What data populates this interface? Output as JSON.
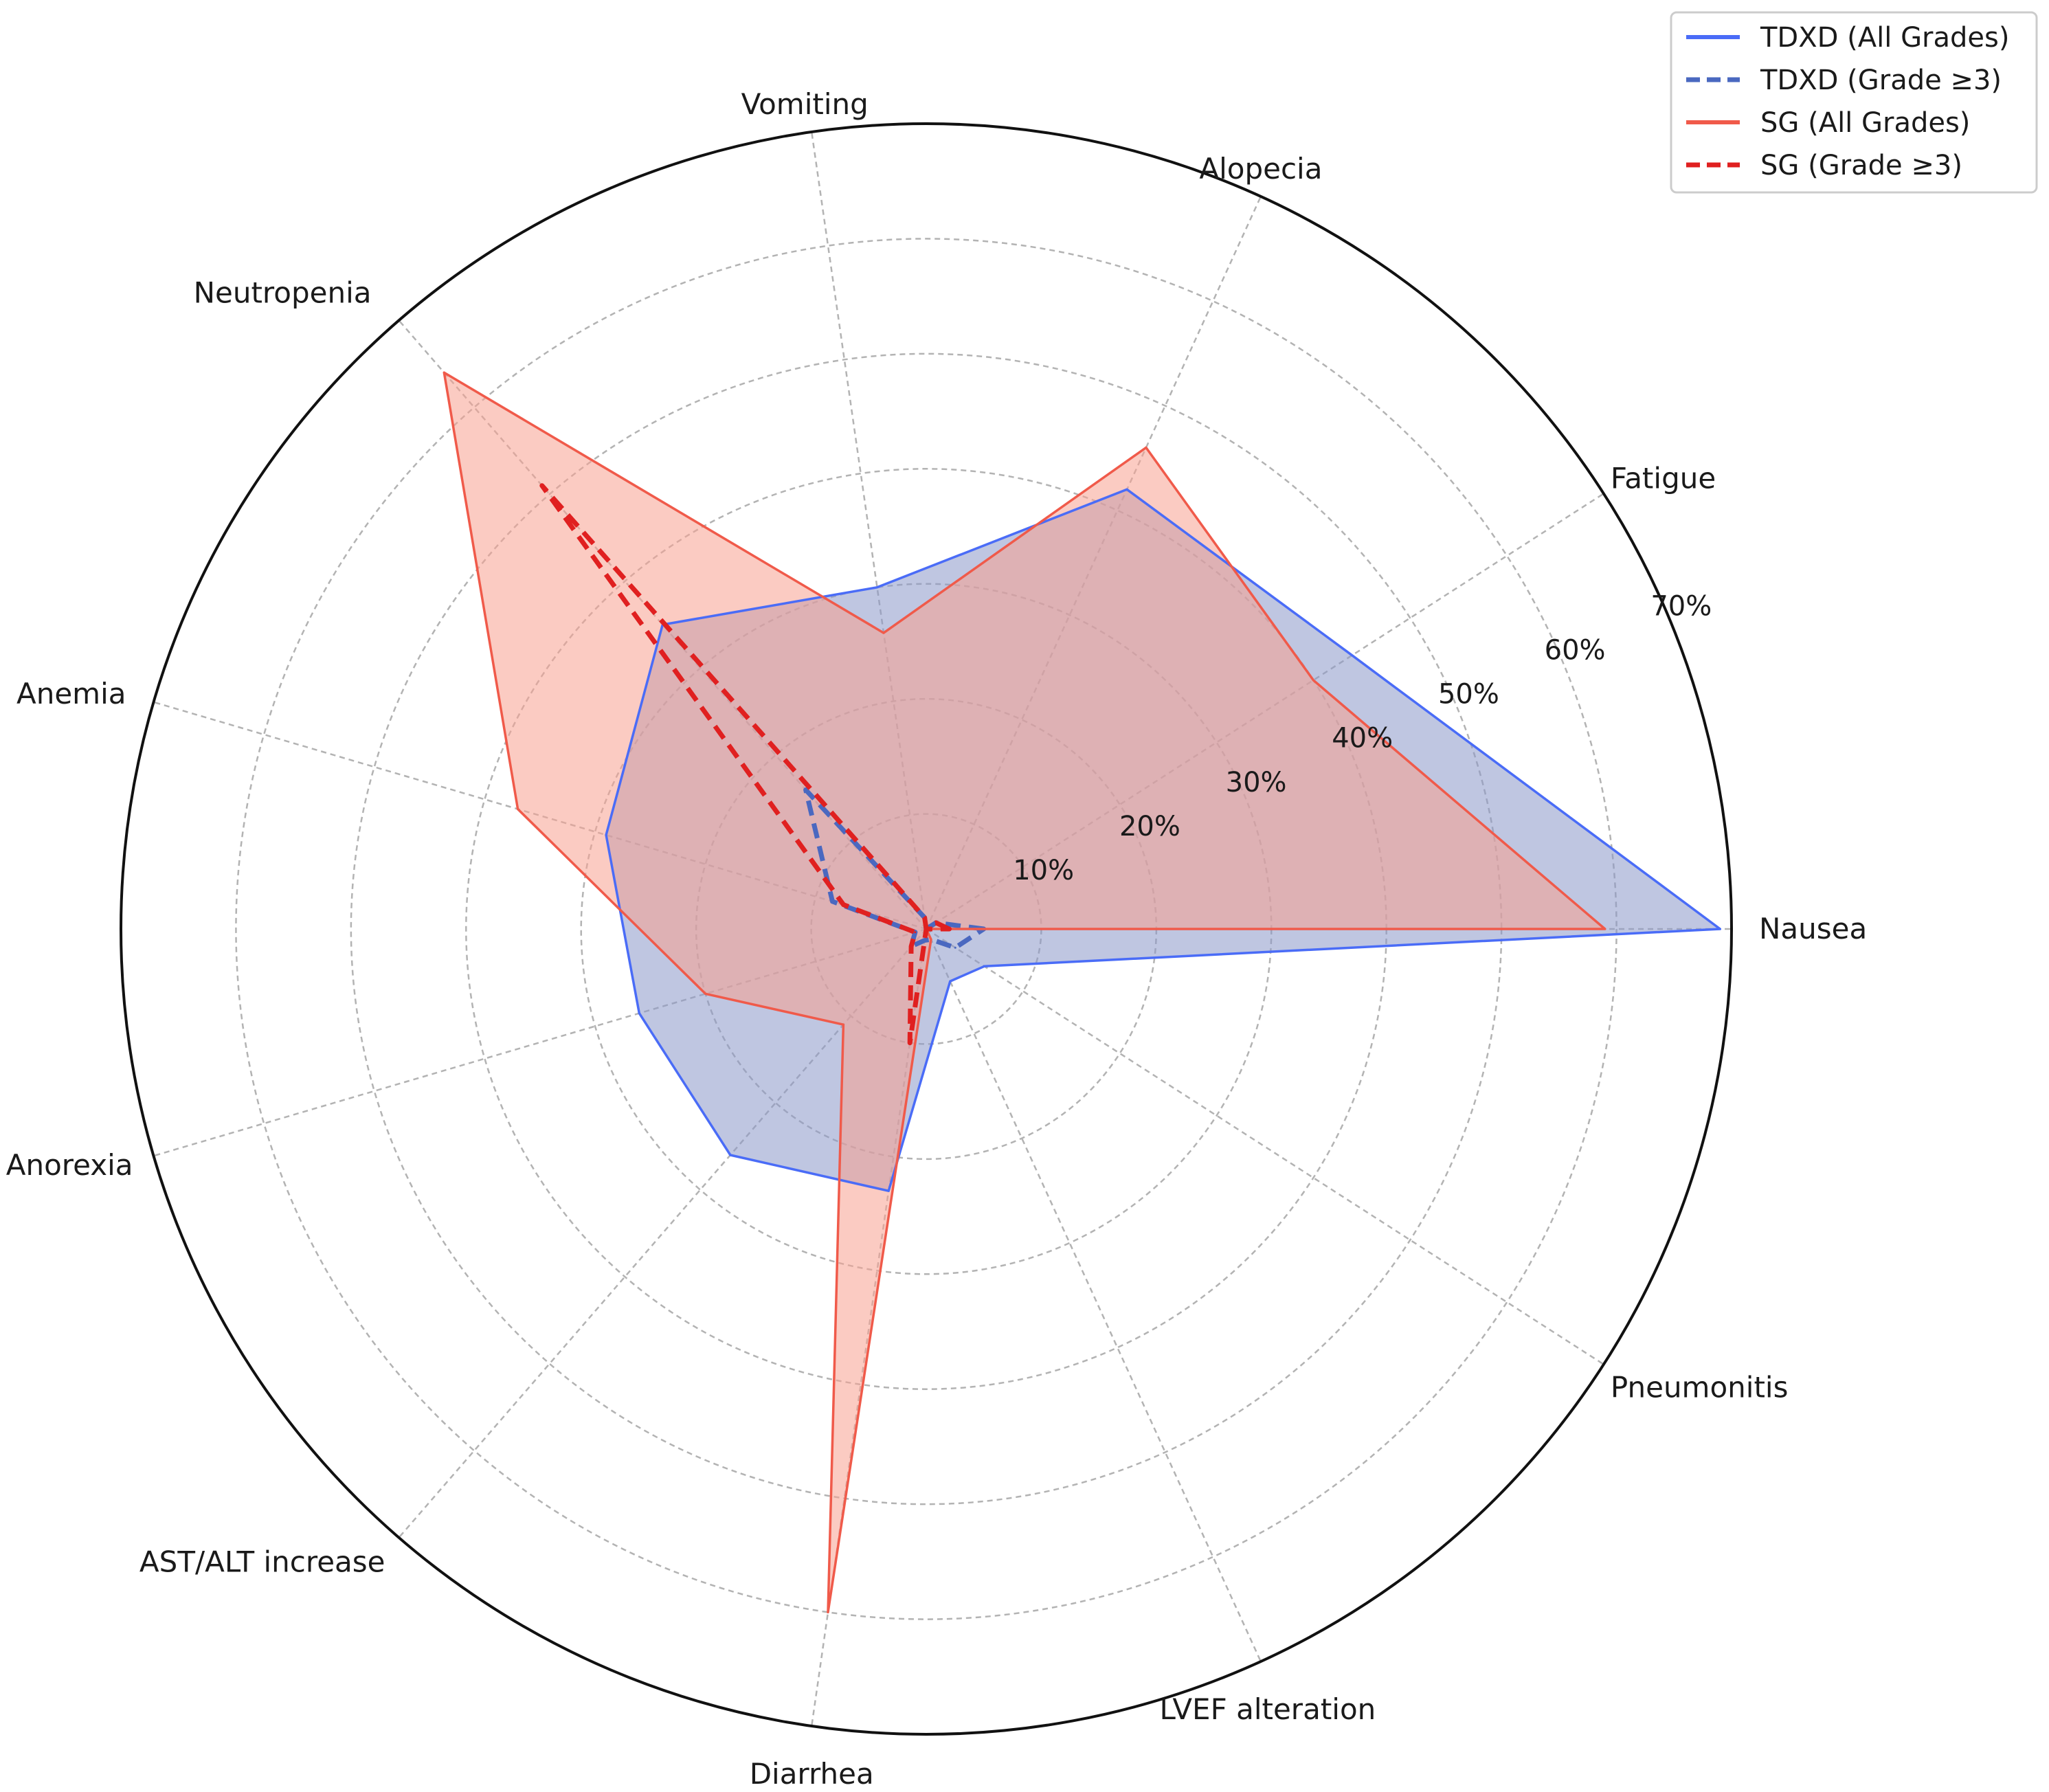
{
  "chart_data": {
    "type": "radar",
    "title": "",
    "categories": [
      "Nausea",
      "Fatigue",
      "Alopecia",
      "Vomiting",
      "Neutropenia",
      "Anemia",
      "Anorexia",
      "AST/ALT increase",
      "Diarrhea",
      "LVEF alteration",
      "Pneumonitis"
    ],
    "r_ticks": [
      10,
      20,
      30,
      40,
      50,
      60,
      70
    ],
    "r_tick_labels": [
      "10%",
      "20%",
      "30%",
      "40%",
      "50%",
      "60%",
      "70%"
    ],
    "r_max": 70,
    "grid": true,
    "legend_position": "top-right",
    "series": [
      {
        "name": "TDXD (All Grades)",
        "color": "#4a6cf7",
        "line": "solid",
        "filled": true,
        "fill_color": "#8a97c8",
        "values": [
          69.0,
          44.0,
          42.0,
          30.0,
          35.0,
          29.0,
          26.0,
          26.0,
          23.0,
          5.0,
          6.0
        ]
      },
      {
        "name": "TDXD (Grade ≥3)",
        "color": "#4a68c0",
        "line": "dashed",
        "filled": false,
        "values": [
          5.0,
          1.0,
          0.0,
          1.0,
          16.0,
          8.5,
          1.0,
          2.0,
          1.0,
          1.0,
          3.0
        ]
      },
      {
        "name": "SG (All Grades)",
        "color": "#f05a4a",
        "line": "solid",
        "filled": true,
        "fill_color": "#f7a090",
        "values": [
          59.0,
          40.0,
          46.0,
          26.0,
          64.0,
          37.0,
          20.0,
          11.0,
          60.0,
          1.0,
          0.0
        ]
      },
      {
        "name": "SG (Grade ≥3)",
        "color": "#e02020",
        "line": "dashed",
        "filled": false,
        "values": [
          2.0,
          1.0,
          0.0,
          1.0,
          51.0,
          7.5,
          1.0,
          2.0,
          10.0,
          0.0,
          0.0
        ]
      }
    ]
  }
}
